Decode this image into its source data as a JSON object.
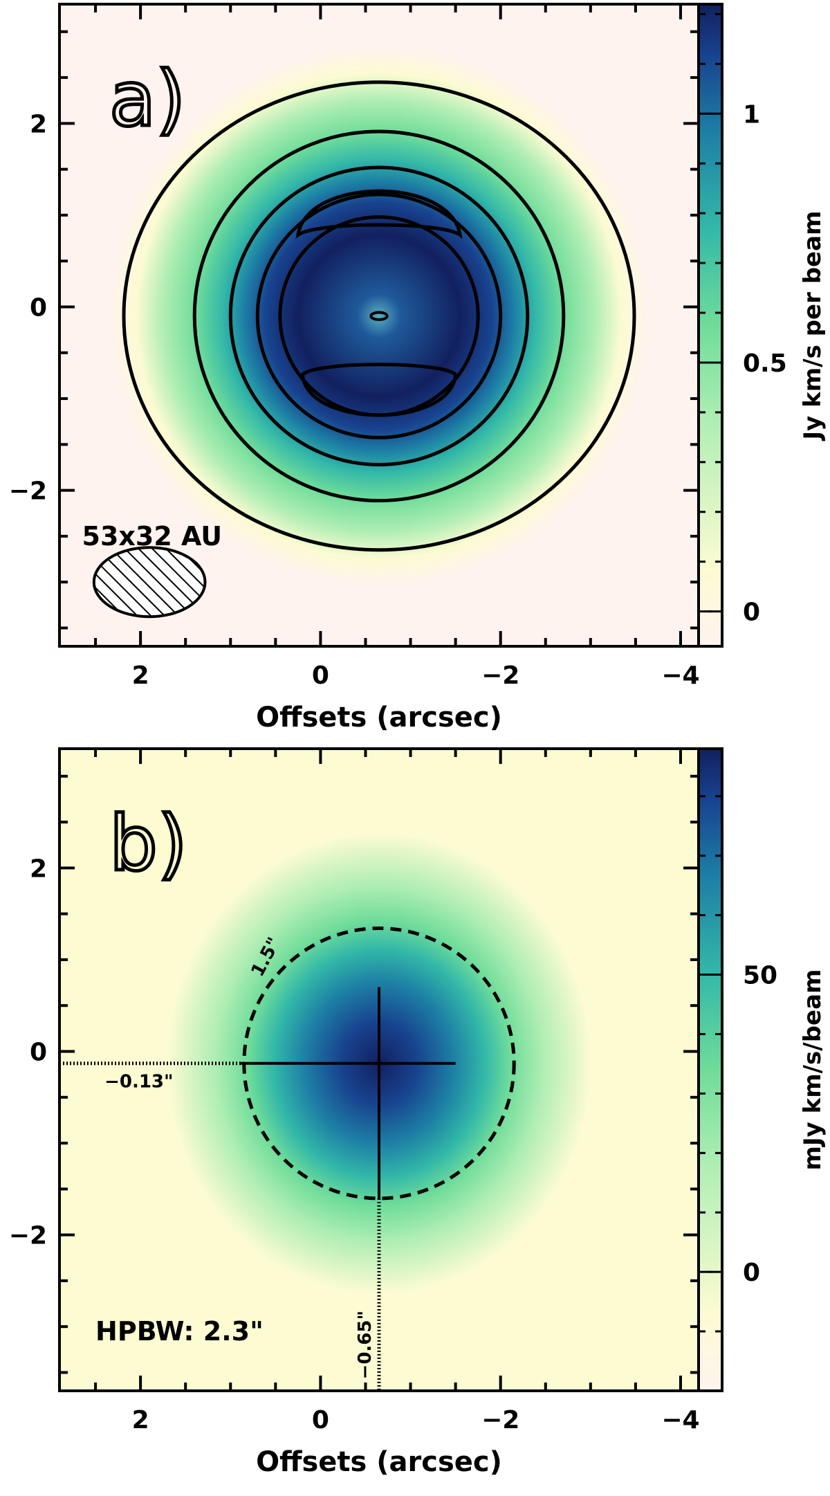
{
  "chart_data": [
    {
      "type": "heatmap",
      "panel_label": "a)",
      "x_range": [
        2.9,
        -4.2
      ],
      "y_range": [
        -3.7,
        3.3
      ],
      "xlabel": "Offsets (arcsec)",
      "x_ticks": [
        2,
        0,
        -2,
        -4
      ],
      "x_tick_labels": [
        "2",
        "0",
        "−2",
        "−4"
      ],
      "y_ticks": [
        2,
        0,
        -2
      ],
      "y_tick_labels": [
        "2",
        "0",
        "−2"
      ],
      "colorbar": {
        "label": "Jy km/s per beam",
        "range": [
          -0.07,
          1.22
        ],
        "ticks": [
          0,
          0.5,
          1
        ],
        "tick_labels": [
          "0",
          "0.5",
          "1"
        ]
      },
      "source_center": [
        -0.65,
        -0.1
      ],
      "contours_radius_arcsec": [
        2.65,
        2.05,
        1.65,
        1.35,
        1.1
      ],
      "beam_label": "53x32 AU",
      "beam": {
        "center": [
          1.9,
          -3.0
        ],
        "major": 0.95,
        "minor": 0.53
      }
    },
    {
      "type": "heatmap",
      "panel_label": "b)",
      "x_range": [
        2.9,
        -4.2
      ],
      "y_range": [
        -3.7,
        3.3
      ],
      "xlabel": "Offsets (arcsec)",
      "x_ticks": [
        2,
        0,
        -2,
        -4
      ],
      "x_tick_labels": [
        "2",
        "0",
        "−2",
        "−4"
      ],
      "y_ticks": [
        2,
        0,
        -2
      ],
      "y_tick_labels": [
        "2",
        "0",
        "−2"
      ],
      "colorbar": {
        "label": "mJy km/s/beam",
        "range": [
          -20,
          88
        ],
        "ticks": [
          0,
          50
        ],
        "tick_labels": [
          "0",
          "50"
        ]
      },
      "peak": [
        -0.65,
        -0.13
      ],
      "circle_radius_arcsec": 1.5,
      "circle_label": "1.5\"",
      "hline_label": "−0.13\"",
      "vline_label": "−0.65\"",
      "hpbw_label": "HPBW: 2.3\""
    }
  ],
  "colors": {
    "cmap": [
      "#fff3f0",
      "#fcfbd2",
      "#b0eeb4",
      "#6fdc9a",
      "#33b8a8",
      "#1d7fa5",
      "#18438f",
      "#12205f"
    ],
    "axis": "#000000"
  }
}
